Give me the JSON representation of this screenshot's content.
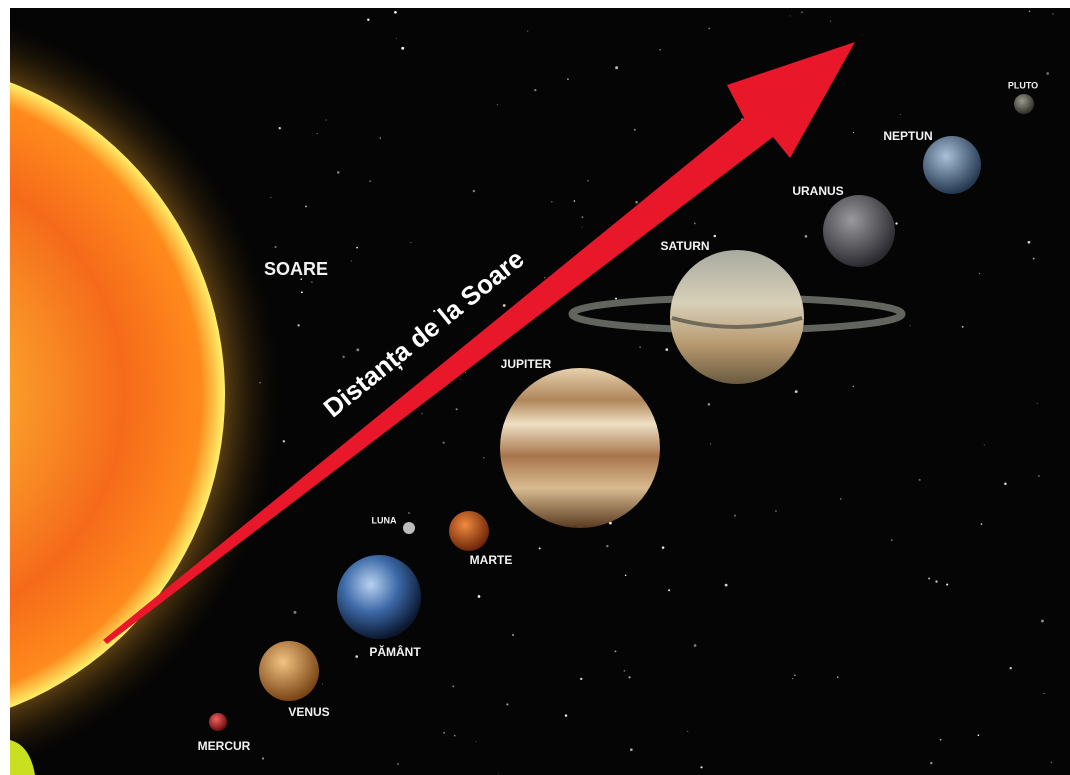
{
  "sun": {
    "label": "SOARE"
  },
  "arrow": {
    "label": "Distanța de la Soare"
  },
  "planets": [
    {
      "label": "MERCUR"
    },
    {
      "label": "VENUS"
    },
    {
      "label": "PĂMÂNT"
    },
    {
      "label": "LUNA"
    },
    {
      "label": "MARTE"
    },
    {
      "label": "JUPITER"
    },
    {
      "label": "SATURN"
    },
    {
      "label": "URANUS"
    },
    {
      "label": "NEPTUN"
    },
    {
      "label": "PLUTO"
    }
  ]
}
